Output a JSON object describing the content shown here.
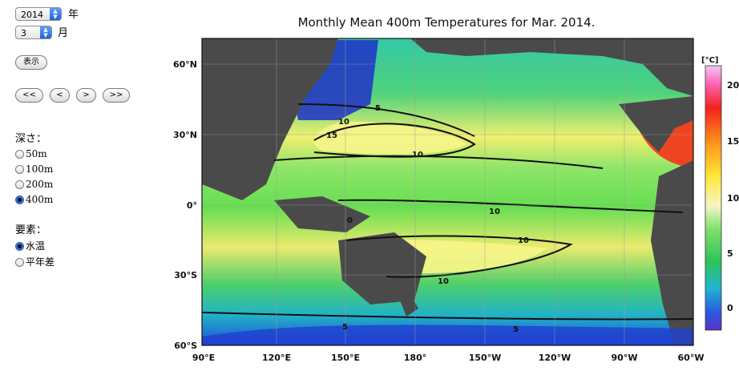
{
  "controls": {
    "year": {
      "value": "2014",
      "label": "年"
    },
    "month": {
      "value": "3",
      "label": "月"
    },
    "show_button": "表示",
    "nav": [
      "<<",
      "<",
      ">",
      ">>"
    ],
    "depth": {
      "heading": "深さ：",
      "options": [
        "50m",
        "100m",
        "200m",
        "400m"
      ],
      "selected": "400m"
    },
    "element": {
      "heading": "要素：",
      "options": [
        "水温",
        "平年差"
      ],
      "selected": "水温"
    }
  },
  "chart_data": {
    "type": "heatmap",
    "title": "Monthly Mean 400m Temperatures for Mar. 2014.",
    "x_ticks": [
      "90°E",
      "120°E",
      "150°E",
      "180°",
      "150°W",
      "120°W",
      "90°W",
      "60°W"
    ],
    "y_ticks": [
      "60°N",
      "30°N",
      "0°",
      "30°S",
      "60°S"
    ],
    "colorbar": {
      "unit": "[°C]",
      "ticks": [
        "20",
        "15",
        "10",
        "5",
        "0"
      ]
    },
    "contour_labels": [
      "5",
      "10",
      "15",
      "10",
      "10",
      "0",
      "10",
      "10",
      "5",
      "5"
    ]
  }
}
